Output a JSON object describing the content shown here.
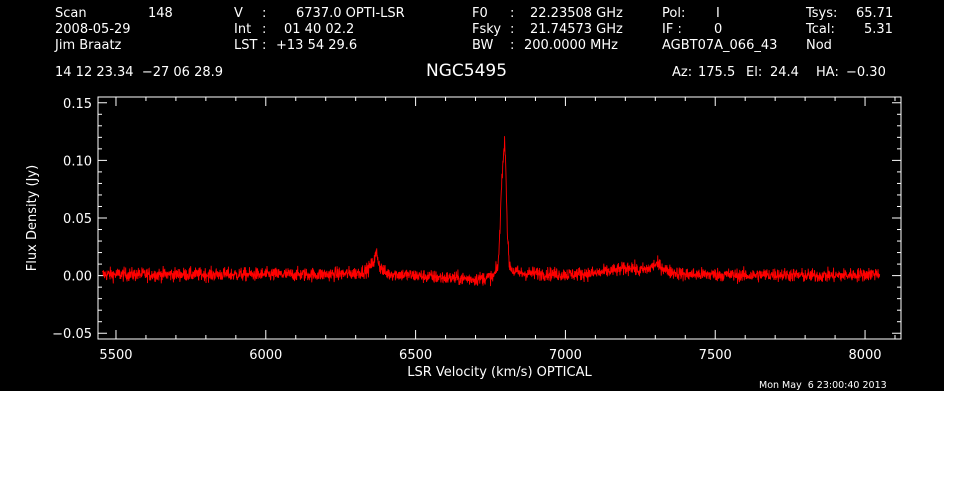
{
  "header": {
    "scan_label": "Scan",
    "scan_value": "148",
    "date": "2008-05-29",
    "observer": "Jim Braatz",
    "v_label": "V",
    "v_value": "6737.0 OPTI-LSR",
    "int_label": "Int",
    "int_value": "01 40 02.2",
    "lst_label": "LST",
    "lst_value": "+13 54 29.6",
    "f0_label": "F0",
    "f0_value": "22.23508 GHz",
    "fsky_label": "Fsky",
    "fsky_value": "21.74573 GHz",
    "bw_label": "BW",
    "bw_value": "200.0000 MHz",
    "pol_label": "Pol:",
    "pol_value": "I",
    "if_label": "IF :",
    "if_value": "0",
    "session": "AGBT07A_066_43",
    "tsys_label": "Tsys:",
    "tsys_value": "65.71",
    "tcal_label": "Tcal:",
    "tcal_value": "5.31",
    "mode": "Nod",
    "coords": "14 12 23.34  −27 06 28.9",
    "az_label": "Az:",
    "az_value": "175.5",
    "el_label": "El:",
    "el_value": "24.4",
    "ha_label": "HA:",
    "ha_value": "−0.30",
    "timestamp": "Mon May  6 23:00:40 2013"
  },
  "chart_data": {
    "type": "line",
    "title": "NGC5495",
    "xlabel": "LSR Velocity (km/s) OPTICAL",
    "ylabel": "Flux Density (Jy)",
    "xlim": [
      5440,
      8120
    ],
    "ylim": [
      -0.055,
      0.155
    ],
    "xticks": [
      5500,
      6000,
      6500,
      7000,
      7500,
      8000
    ],
    "yticks": [
      -0.05,
      0.0,
      0.05,
      0.1,
      0.15
    ],
    "ytick_labels": [
      "−0.05",
      "0.00",
      "0.05",
      "0.10",
      "0.15"
    ],
    "grid": false,
    "line_color": "#ff0000",
    "noise_rms": 0.003,
    "series": [
      {
        "x": [
          5455,
          5600,
          5800,
          6000,
          6200,
          6300,
          6340,
          6360,
          6370,
          6380,
          6400,
          6500,
          6600,
          6700,
          6760,
          6775,
          6782,
          6786,
          6790,
          6794,
          6798,
          6802,
          6806,
          6812,
          6825,
          6850,
          6900,
          7000,
          7100,
          7200,
          7220,
          7240,
          7280,
          7300,
          7320,
          7340,
          7400,
          7500,
          7600,
          7700,
          7800,
          7900,
          8000,
          8050
        ],
        "y": [
          0.001,
          0.001,
          0.001,
          0.001,
          0.001,
          0.002,
          0.005,
          0.012,
          0.02,
          0.008,
          0.002,
          0.0,
          -0.002,
          -0.003,
          -0.001,
          0.008,
          0.04,
          0.078,
          0.092,
          0.105,
          0.118,
          0.085,
          0.04,
          0.01,
          0.004,
          0.002,
          0.002,
          0.001,
          0.002,
          0.006,
          0.008,
          0.004,
          0.006,
          0.01,
          0.008,
          0.004,
          0.001,
          0.001,
          0.0,
          0.001,
          0.0,
          0.0,
          0.001,
          0.002
        ]
      }
    ]
  }
}
